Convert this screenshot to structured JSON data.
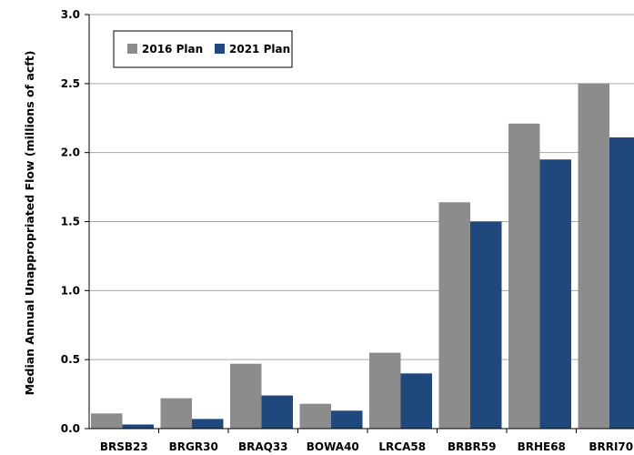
{
  "chart_data": {
    "type": "bar",
    "title": "",
    "xlabel": "",
    "ylabel": "Median Annual Unappropriated Flow (millions of acft)",
    "ylim": [
      0,
      3.0
    ],
    "yticks": [
      "0.0",
      "0.5",
      "1.0",
      "1.5",
      "2.0",
      "2.5",
      "3.0"
    ],
    "grid": true,
    "legend_position": "top-left",
    "categories": [
      "BRSB23",
      "BRGR30",
      "BRAQ33",
      "BOWA40",
      "LRCA58",
      "BRBR59",
      "BRHE68",
      "BRRI70"
    ],
    "series": [
      {
        "name": "2016 Plan",
        "color": "#8c8c8c",
        "values": [
          0.11,
          0.22,
          0.47,
          0.18,
          0.55,
          1.64,
          2.21,
          2.5
        ]
      },
      {
        "name": "2021 Plan",
        "color": "#1f497d",
        "values": [
          0.03,
          0.07,
          0.24,
          0.13,
          0.4,
          1.5,
          1.95,
          2.11
        ]
      }
    ]
  }
}
